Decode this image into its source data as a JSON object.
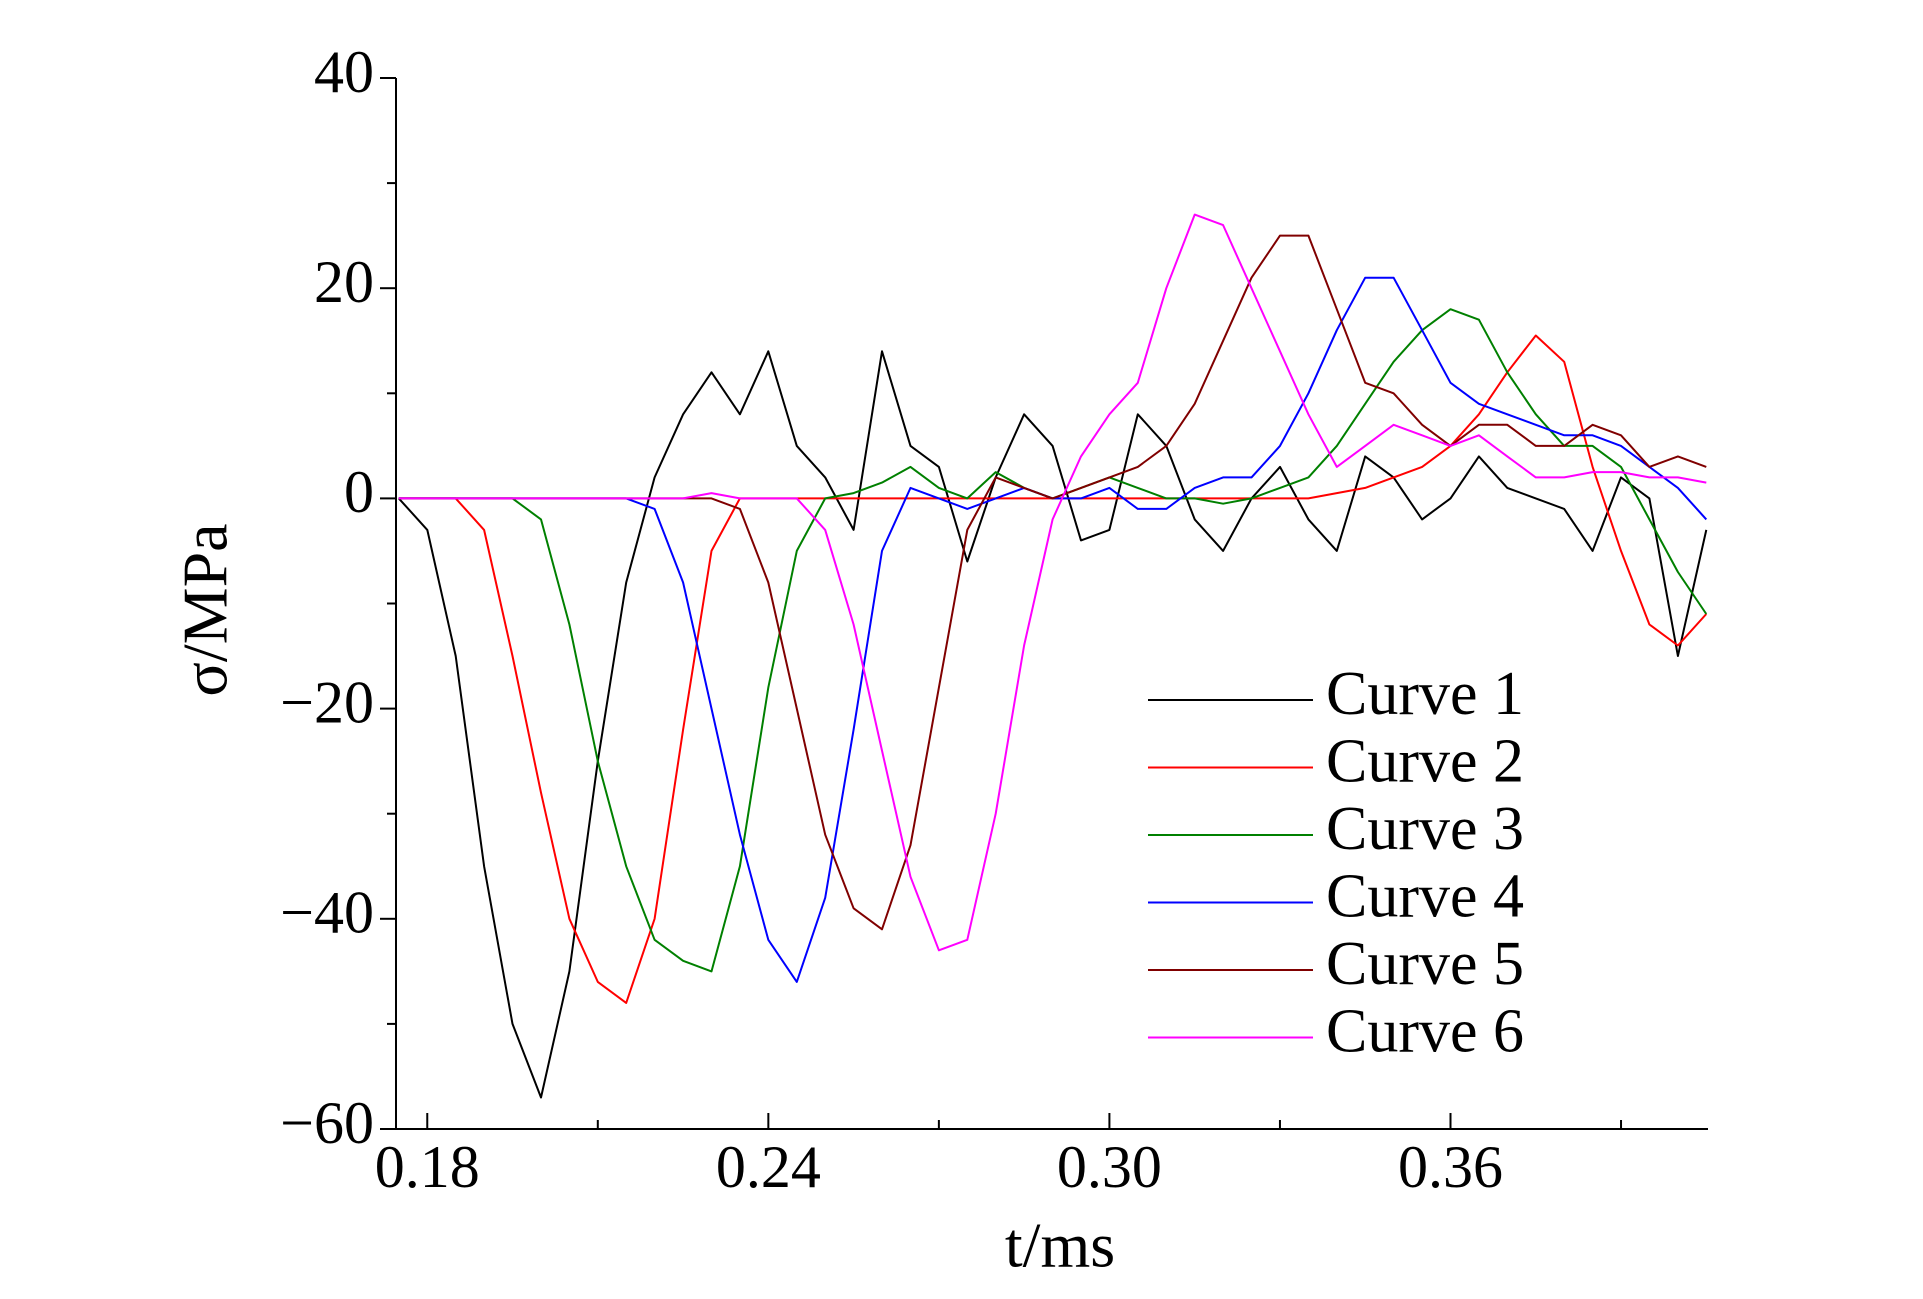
{
  "chart_data": {
    "type": "line",
    "x_label": "t/ms",
    "y_label": "σ/MPa",
    "xlim": [
      0.1745,
      0.4053
    ],
    "ylim": [
      -60,
      40
    ],
    "xticks": [
      0.18,
      0.24,
      {
        "value": 0.3,
        "label": "0.30"
      },
      0.36
    ],
    "xminor_ticks": [
      0.21,
      0.27,
      0.33,
      0.39
    ],
    "yticks": [
      40,
      20,
      0,
      {
        "value": -20,
        "label": "−20"
      },
      {
        "value": -40,
        "label": "−40"
      },
      {
        "value": -60,
        "label": "−60"
      }
    ],
    "yminor_ticks": [
      30,
      10,
      -10,
      -30,
      -50
    ],
    "legend": "lower right",
    "x": [
      0.175,
      0.18,
      0.185,
      0.19,
      0.195,
      0.2,
      0.205,
      0.21,
      0.215,
      0.22,
      0.225,
      0.23,
      0.235,
      0.24,
      0.245,
      0.25,
      0.255,
      0.26,
      0.265,
      0.27,
      0.275,
      0.28,
      0.285,
      0.29,
      0.295,
      0.3,
      0.305,
      0.31,
      0.315,
      0.32,
      0.325,
      0.33,
      0.335,
      0.34,
      0.345,
      0.35,
      0.355,
      0.36,
      0.365,
      0.37,
      0.375,
      0.38,
      0.385,
      0.39,
      0.395,
      0.4,
      0.405
    ],
    "series": [
      {
        "name": "Curve 1",
        "color": "#000000",
        "values": [
          0,
          -3,
          -15,
          -35,
          -50,
          -57,
          -45,
          -25,
          -8,
          2,
          8,
          12,
          8,
          14,
          5,
          2,
          -3,
          14,
          5,
          3,
          -6,
          2,
          8,
          5,
          -4,
          -3,
          8,
          5,
          -2,
          -5,
          0,
          3,
          -2,
          -5,
          4,
          2,
          -2,
          0,
          4,
          1,
          0,
          -1,
          -5,
          2,
          0,
          -15,
          -3
        ]
      },
      {
        "name": "Curve 2",
        "color": "#ff0000",
        "values": [
          0,
          0,
          0,
          -3,
          -15,
          -28,
          -40,
          -46,
          -48,
          -40,
          -22,
          -5,
          0,
          0,
          0,
          0,
          0,
          0,
          0,
          0,
          0,
          0,
          0,
          0,
          0,
          0,
          0,
          0,
          0,
          0,
          0,
          0,
          0,
          0.5,
          1,
          2,
          3,
          5,
          8,
          12,
          15.5,
          13,
          3,
          -5,
          -12,
          -14,
          -11
        ]
      },
      {
        "name": "Curve 3",
        "color": "#008000",
        "values": [
          0,
          0,
          0,
          0,
          0,
          -2,
          -12,
          -25,
          -35,
          -42,
          -44,
          -45,
          -35,
          -18,
          -5,
          0,
          0.5,
          1.5,
          3,
          1,
          0,
          2.5,
          1,
          0,
          1,
          2,
          1,
          0,
          0,
          -0.5,
          0,
          1,
          2,
          5,
          9,
          13,
          16,
          18,
          17,
          12,
          8,
          5,
          5,
          3,
          -2,
          -7,
          -11
        ]
      },
      {
        "name": "Curve 4",
        "color": "#0000ff",
        "values": [
          0,
          0,
          0,
          0,
          0,
          0,
          0,
          0,
          0,
          -1,
          -8,
          -20,
          -32,
          -42,
          -46,
          -38,
          -22,
          -5,
          1,
          0,
          -1,
          0,
          1,
          0,
          0,
          1,
          -1,
          -1,
          1,
          2,
          2,
          5,
          10,
          16,
          21,
          21,
          16,
          11,
          9,
          8,
          7,
          6,
          6,
          5,
          3,
          1,
          -2
        ]
      },
      {
        "name": "Curve 5",
        "color": "#800000",
        "values": [
          0,
          0,
          0,
          0,
          0,
          0,
          0,
          0,
          0,
          0,
          0,
          0,
          -1,
          -8,
          -20,
          -32,
          -39,
          -41,
          -33,
          -18,
          -3,
          2,
          1,
          0,
          1,
          2,
          3,
          5,
          9,
          15,
          21,
          25,
          25,
          18,
          11,
          10,
          7,
          5,
          7,
          7,
          5,
          5,
          7,
          6,
          3,
          4,
          3
        ]
      },
      {
        "name": "Curve 6",
        "color": "#ff00ff",
        "values": [
          0,
          0,
          0,
          0,
          0,
          0,
          0,
          0,
          0,
          0,
          0,
          0.5,
          0,
          0,
          0,
          -3,
          -12,
          -24,
          -36,
          -43,
          -42,
          -30,
          -14,
          -2,
          4,
          8,
          11,
          20,
          27,
          26,
          20,
          14,
          8,
          3,
          5,
          7,
          6,
          5,
          6,
          4,
          2,
          2,
          2.5,
          2.5,
          2,
          2,
          1.5
        ]
      }
    ]
  }
}
